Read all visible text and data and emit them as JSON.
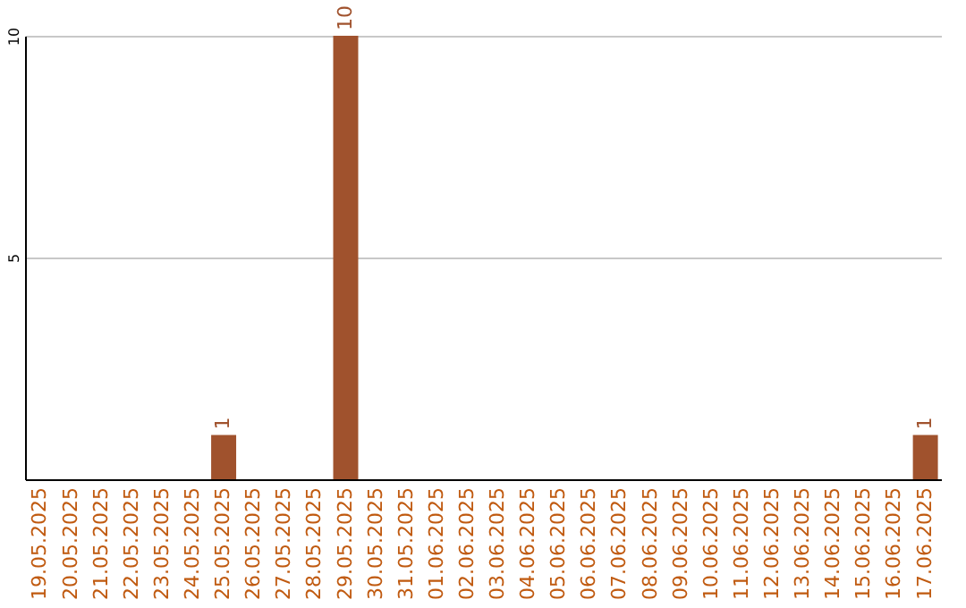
{
  "chart_data": {
    "type": "bar",
    "categories": [
      "19.05.2025",
      "20.05.2025",
      "21.05.2025",
      "22.05.2025",
      "23.05.2025",
      "24.05.2025",
      "25.05.2025",
      "26.05.2025",
      "27.05.2025",
      "28.05.2025",
      "29.05.2025",
      "30.05.2025",
      "31.05.2025",
      "01.06.2025",
      "02.06.2025",
      "03.06.2025",
      "04.06.2025",
      "05.06.2025",
      "06.06.2025",
      "07.06.2025",
      "08.06.2025",
      "09.06.2025",
      "10.06.2025",
      "11.06.2025",
      "12.06.2025",
      "13.06.2025",
      "14.06.2025",
      "15.06.2025",
      "16.06.2025",
      "17.06.2025"
    ],
    "values": [
      0,
      0,
      0,
      0,
      0,
      0,
      1,
      0,
      0,
      0,
      10,
      0,
      0,
      0,
      0,
      0,
      0,
      0,
      0,
      0,
      0,
      0,
      0,
      0,
      0,
      0,
      0,
      0,
      0,
      1
    ],
    "value_labels": [
      null,
      null,
      null,
      null,
      null,
      null,
      "1",
      null,
      null,
      null,
      "10",
      null,
      null,
      null,
      null,
      null,
      null,
      null,
      null,
      null,
      null,
      null,
      null,
      null,
      null,
      null,
      null,
      null,
      null,
      "1"
    ],
    "color": "#a0522d",
    "ylim": [
      0,
      10
    ],
    "yticks": [
      5,
      10
    ],
    "grid": "y"
  }
}
